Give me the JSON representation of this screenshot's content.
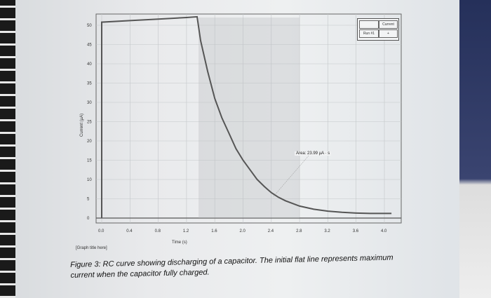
{
  "chart_data": {
    "type": "line",
    "title": "[Graph title here]",
    "xlabel": "Time (s)",
    "ylabel": "Current (µA)",
    "xlim": [
      -0.05,
      4.15
    ],
    "ylim": [
      -1,
      53
    ],
    "xticks": [
      "0.0",
      "0.4",
      "0.8",
      "1.2",
      "1.6",
      "2.0",
      "2.4",
      "2.8",
      "3.2",
      "3.6",
      "4.0"
    ],
    "yticks": [
      "0",
      "5",
      "10",
      "15",
      "20",
      "25",
      "30",
      "35",
      "40",
      "45",
      "50"
    ],
    "grid": true,
    "series": [
      {
        "name": "Current",
        "x": [
          0.0,
          0.0,
          0.4,
          0.8,
          1.2,
          1.35,
          1.4,
          1.5,
          1.6,
          1.7,
          1.8,
          1.9,
          2.0,
          2.1,
          2.2,
          2.3,
          2.4,
          2.5,
          2.6,
          2.8,
          3.0,
          3.2,
          3.4,
          3.6,
          3.8,
          4.1
        ],
        "y": [
          0,
          50.8,
          51.2,
          51.6,
          52.0,
          52.2,
          46,
          38,
          31,
          26,
          22,
          18,
          15,
          12.5,
          10,
          8.2,
          6.6,
          5.4,
          4.5,
          3.1,
          2.3,
          1.8,
          1.5,
          1.3,
          1.2,
          1.2
        ]
      }
    ],
    "legend": {
      "position": "top-right",
      "header": "Current",
      "run": "Run #1",
      "symbol": "+"
    },
    "annotation": "Area: 23.99 µA · s"
  },
  "caption": "Figure 3: RC curve showing discharging of a capacitor. The initial flat line represents maximum current when the capacitor fully charged.",
  "colors": {
    "line": "#555555",
    "grid": "#c4c7ca",
    "shade": "#b9bcc0"
  }
}
